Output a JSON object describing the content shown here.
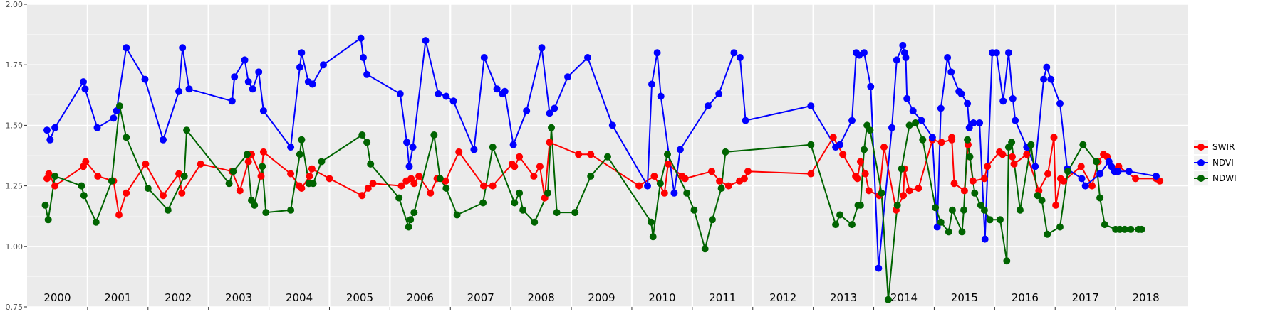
{
  "chart_data": {
    "type": "line",
    "title": "",
    "xlabel": "",
    "ylabel": "",
    "ylim": [
      0.75,
      2.0
    ],
    "yticks": [
      "0.75",
      "1.00",
      "1.25",
      "1.50",
      "1.75",
      "2.00"
    ],
    "xlim": [
      2000.0,
      2019.2
    ],
    "year_labels": [
      "2000",
      "2001",
      "2002",
      "2003",
      "2004",
      "2005",
      "2006",
      "2007",
      "2008",
      "2009",
      "2010",
      "2011",
      "2012",
      "2013",
      "2014",
      "2015",
      "2016",
      "2017",
      "2018"
    ],
    "grid": true,
    "legend": "right",
    "series": [
      {
        "name": "SWIR",
        "color": "#ff0000",
        "x": [
          2000.33,
          2000.36,
          2000.46,
          2000.93,
          2000.97,
          2001.17,
          2001.43,
          2001.52,
          2001.64,
          2001.96,
          2002.25,
          2002.51,
          2002.56,
          2002.87,
          2003.39,
          2003.52,
          2003.66,
          2003.71,
          2003.87,
          2003.91,
          2004.36,
          2004.5,
          2004.54,
          2004.67,
          2004.71,
          2005.0,
          2005.54,
          2005.64,
          2005.72,
          2006.19,
          2006.27,
          2006.35,
          2006.4,
          2006.48,
          2006.67,
          2006.78,
          2006.92,
          2007.14,
          2007.55,
          2007.7,
          2008.02,
          2008.06,
          2008.14,
          2008.38,
          2008.48,
          2008.56,
          2008.64,
          2009.12,
          2009.32,
          2010.12,
          2010.37,
          2010.54,
          2010.6,
          2010.83,
          2010.88,
          2011.32,
          2011.45,
          2011.6,
          2011.78,
          2011.86,
          2011.92,
          2012.96,
          2013.33,
          2013.49,
          2013.7,
          2013.73,
          2013.78,
          2013.86,
          2013.92,
          2014.09,
          2014.17,
          2014.37,
          2014.49,
          2014.51,
          2014.59,
          2014.74,
          2014.97,
          2015.12,
          2015.29,
          2015.29,
          2015.33,
          2015.5,
          2015.56,
          2015.64,
          2015.83,
          2015.88,
          2016.08,
          2016.13,
          2016.29,
          2016.32,
          2016.53,
          2016.73,
          2016.88,
          2016.98,
          2017.01,
          2017.09,
          2017.14,
          2017.43,
          2017.61,
          2017.71,
          2017.8,
          2017.86,
          2018.03,
          2018.05,
          2018.33,
          2018.67,
          2018.73
        ],
        "y": [
          1.28,
          1.3,
          1.25,
          1.33,
          1.35,
          1.29,
          1.27,
          1.13,
          1.22,
          1.34,
          1.21,
          1.3,
          1.22,
          1.34,
          1.31,
          1.23,
          1.35,
          1.38,
          1.29,
          1.39,
          1.3,
          1.25,
          1.24,
          1.29,
          1.32,
          1.28,
          1.21,
          1.24,
          1.26,
          1.25,
          1.27,
          1.28,
          1.26,
          1.29,
          1.22,
          1.28,
          1.27,
          1.39,
          1.25,
          1.25,
          1.34,
          1.33,
          1.37,
          1.29,
          1.33,
          1.2,
          1.43,
          1.38,
          1.38,
          1.25,
          1.29,
          1.22,
          1.34,
          1.29,
          1.28,
          1.31,
          1.27,
          1.25,
          1.27,
          1.28,
          1.31,
          1.3,
          1.45,
          1.38,
          1.29,
          1.28,
          1.35,
          1.3,
          1.23,
          1.21,
          1.41,
          1.15,
          1.21,
          1.32,
          1.23,
          1.24,
          1.44,
          1.43,
          1.44,
          1.45,
          1.26,
          1.23,
          1.42,
          1.27,
          1.28,
          1.33,
          1.39,
          1.38,
          1.37,
          1.34,
          1.38,
          1.23,
          1.3,
          1.45,
          1.17,
          1.28,
          1.27,
          1.33,
          1.25,
          1.35,
          1.38,
          1.37,
          1.31,
          1.33,
          1.28,
          1.28,
          1.27
        ]
      },
      {
        "name": "NDVI",
        "color": "#0000ff",
        "x": [
          2000.33,
          2000.38,
          2000.46,
          2000.93,
          2000.96,
          2001.16,
          2001.43,
          2001.48,
          2001.64,
          2001.95,
          2002.25,
          2002.51,
          2002.57,
          2002.68,
          2003.39,
          2003.43,
          2003.6,
          2003.66,
          2003.73,
          2003.83,
          2003.91,
          2004.36,
          2004.51,
          2004.54,
          2004.65,
          2004.72,
          2004.9,
          2005.52,
          2005.56,
          2005.62,
          2006.17,
          2006.28,
          2006.32,
          2006.38,
          2006.59,
          2006.8,
          2006.93,
          2007.05,
          2007.39,
          2007.56,
          2007.77,
          2007.86,
          2007.9,
          2008.04,
          2008.26,
          2008.51,
          2008.64,
          2008.72,
          2008.94,
          2009.27,
          2009.68,
          2010.26,
          2010.33,
          2010.42,
          2010.48,
          2010.7,
          2010.8,
          2011.26,
          2011.44,
          2011.69,
          2011.79,
          2011.88,
          2012.96,
          2013.37,
          2013.44,
          2013.64,
          2013.71,
          2013.76,
          2013.84,
          2013.95,
          2014.08,
          2014.3,
          2014.38,
          2014.48,
          2014.51,
          2014.53,
          2014.55,
          2014.65,
          2014.79,
          2014.97,
          2015.05,
          2015.11,
          2015.22,
          2015.28,
          2015.41,
          2015.45,
          2015.55,
          2015.58,
          2015.65,
          2015.75,
          2015.84,
          2015.96,
          2016.03,
          2016.14,
          2016.23,
          2016.3,
          2016.34,
          2016.53,
          2016.67,
          2016.81,
          2016.86,
          2016.93,
          2017.08,
          2017.2,
          2017.44,
          2017.5,
          2017.74,
          2017.89,
          2017.93,
          2017.98,
          2018.04,
          2018.22,
          2018.67
        ],
        "y": [
          1.48,
          1.44,
          1.49,
          1.68,
          1.65,
          1.49,
          1.53,
          1.56,
          1.82,
          1.69,
          1.44,
          1.64,
          1.82,
          1.65,
          1.6,
          1.7,
          1.77,
          1.68,
          1.65,
          1.72,
          1.56,
          1.41,
          1.74,
          1.8,
          1.68,
          1.67,
          1.75,
          1.86,
          1.78,
          1.71,
          1.63,
          1.43,
          1.33,
          1.41,
          1.85,
          1.63,
          1.62,
          1.6,
          1.4,
          1.78,
          1.65,
          1.63,
          1.64,
          1.42,
          1.56,
          1.82,
          1.55,
          1.57,
          1.7,
          1.78,
          1.5,
          1.25,
          1.67,
          1.8,
          1.62,
          1.22,
          1.4,
          1.58,
          1.63,
          1.8,
          1.78,
          1.52,
          1.58,
          1.41,
          1.42,
          1.52,
          1.8,
          1.79,
          1.8,
          1.66,
          0.91,
          1.49,
          1.77,
          1.83,
          1.8,
          1.78,
          1.61,
          1.56,
          1.52,
          1.45,
          1.08,
          1.57,
          1.78,
          1.72,
          1.64,
          1.63,
          1.59,
          1.49,
          1.51,
          1.51,
          1.03,
          1.8,
          1.8,
          1.6,
          1.8,
          1.61,
          1.52,
          1.41,
          1.33,
          1.69,
          1.74,
          1.69,
          1.59,
          1.32,
          1.28,
          1.25,
          1.3,
          1.35,
          1.33,
          1.31,
          1.31,
          1.31,
          1.29
        ]
      },
      {
        "name": "NDWI",
        "color": "#006400",
        "x": [
          2000.3,
          2000.35,
          2000.46,
          2000.9,
          2000.94,
          2001.14,
          2001.4,
          2001.53,
          2001.64,
          2002.0,
          2002.33,
          2002.6,
          2002.64,
          2003.34,
          2003.41,
          2003.64,
          2003.71,
          2003.76,
          2003.89,
          2003.95,
          2004.36,
          2004.51,
          2004.54,
          2004.66,
          2004.73,
          2004.87,
          2005.54,
          2005.62,
          2005.68,
          2006.15,
          2006.31,
          2006.34,
          2006.4,
          2006.73,
          2006.83,
          2006.93,
          2007.11,
          2007.54,
          2007.7,
          2008.06,
          2008.14,
          2008.2,
          2008.39,
          2008.61,
          2008.67,
          2008.76,
          2009.06,
          2009.32,
          2009.6,
          2010.32,
          2010.35,
          2010.47,
          2010.59,
          2010.91,
          2011.03,
          2011.21,
          2011.33,
          2011.48,
          2011.55,
          2012.96,
          2013.37,
          2013.44,
          2013.64,
          2013.74,
          2013.78,
          2013.84,
          2013.89,
          2013.94,
          2014.13,
          2014.24,
          2014.39,
          2014.46,
          2014.59,
          2014.69,
          2014.81,
          2015.02,
          2015.11,
          2015.24,
          2015.3,
          2015.46,
          2015.49,
          2015.55,
          2015.59,
          2015.67,
          2015.77,
          2015.83,
          2015.92,
          2016.09,
          2016.2,
          2016.23,
          2016.28,
          2016.42,
          2016.6,
          2016.71,
          2016.78,
          2016.87,
          2017.08,
          2017.21,
          2017.46,
          2017.68,
          2017.74,
          2017.82,
          2018.0,
          2018.07,
          2018.15,
          2018.25,
          2018.38,
          2018.43
        ],
        "y": [
          1.17,
          1.11,
          1.29,
          1.25,
          1.21,
          1.1,
          1.27,
          1.58,
          1.45,
          1.24,
          1.15,
          1.29,
          1.48,
          1.26,
          1.31,
          1.38,
          1.19,
          1.17,
          1.33,
          1.14,
          1.15,
          1.38,
          1.44,
          1.26,
          1.26,
          1.35,
          1.46,
          1.43,
          1.34,
          1.2,
          1.08,
          1.11,
          1.14,
          1.46,
          1.28,
          1.24,
          1.13,
          1.18,
          1.41,
          1.18,
          1.22,
          1.15,
          1.1,
          1.22,
          1.49,
          1.14,
          1.14,
          1.29,
          1.37,
          1.1,
          1.04,
          1.26,
          1.38,
          1.22,
          1.15,
          0.99,
          1.11,
          1.24,
          1.39,
          1.42,
          1.09,
          1.13,
          1.09,
          1.17,
          1.17,
          1.4,
          1.5,
          1.48,
          1.22,
          0.78,
          1.17,
          1.32,
          1.5,
          1.51,
          1.44,
          1.16,
          1.1,
          1.06,
          1.15,
          1.06,
          1.15,
          1.44,
          1.37,
          1.22,
          1.17,
          1.15,
          1.11,
          1.11,
          0.94,
          1.41,
          1.43,
          1.15,
          1.42,
          1.21,
          1.19,
          1.05,
          1.08,
          1.31,
          1.42,
          1.35,
          1.2,
          1.09,
          1.07,
          1.07,
          1.07,
          1.07,
          1.07,
          1.07
        ]
      }
    ]
  }
}
